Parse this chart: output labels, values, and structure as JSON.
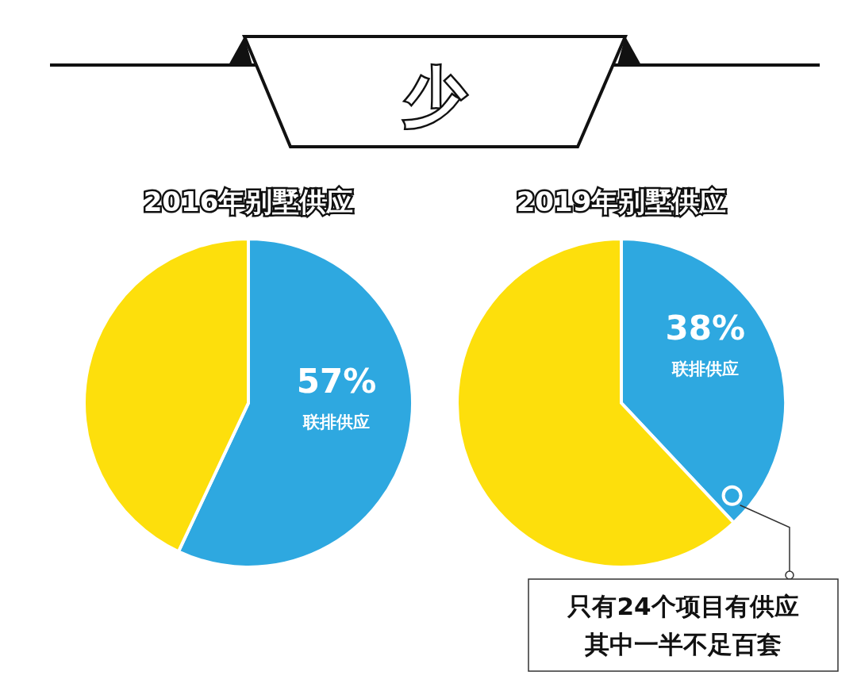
{
  "chart_data": [
    {
      "type": "other",
      "title": "少"
    },
    {
      "type": "pie",
      "title": "2016年别墅供应",
      "categories": [
        "联排供应",
        null
      ],
      "values": [
        57,
        43
      ],
      "colors": [
        "#2ea8e0",
        "#fddf0c"
      ],
      "value_labels": [
        "57%",
        null
      ]
    },
    {
      "type": "pie",
      "title": "2019年别墅供应",
      "categories": [
        "联排供应",
        null
      ],
      "values": [
        38,
        62
      ],
      "colors": [
        "#2ea8e0",
        "#fddf0c"
      ],
      "value_labels": [
        "38%",
        null
      ],
      "annotations": [
        "只有24个项目有供应",
        "其中一半不足百套"
      ]
    }
  ]
}
